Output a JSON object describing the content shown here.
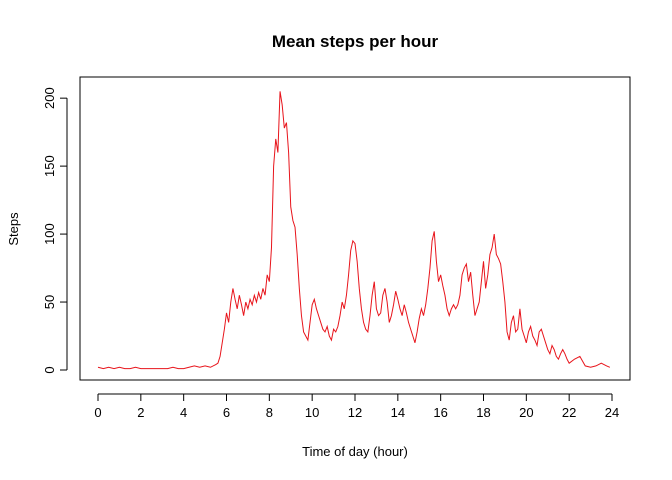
{
  "chart_data": {
    "type": "line",
    "title": "Mean steps per hour",
    "xlabel": "Time of day (hour)",
    "ylabel": "Steps",
    "xlim": [
      0,
      24
    ],
    "ylim": [
      0,
      206
    ],
    "xticks": [
      0,
      2,
      4,
      6,
      8,
      10,
      12,
      14,
      16,
      18,
      20,
      22,
      24
    ],
    "yticks": [
      0,
      50,
      100,
      150,
      200
    ],
    "grid": false,
    "line_color": "#e8141b",
    "series": [
      {
        "x": [
          0,
          0.25,
          0.5,
          0.75,
          1,
          1.25,
          1.5,
          1.75,
          2,
          2.25,
          2.5,
          2.75,
          3,
          3.25,
          3.5,
          3.75,
          4,
          4.25,
          4.5,
          4.75,
          5,
          5.25,
          5.5,
          5.6,
          5.7,
          5.8,
          5.9,
          6,
          6.1,
          6.2,
          6.3,
          6.4,
          6.5,
          6.6,
          6.7,
          6.8,
          6.9,
          7,
          7.1,
          7.2,
          7.3,
          7.4,
          7.5,
          7.6,
          7.7,
          7.8,
          7.9,
          8,
          8.1,
          8.2,
          8.3,
          8.4,
          8.5,
          8.6,
          8.7,
          8.8,
          8.9,
          9,
          9.1,
          9.2,
          9.3,
          9.4,
          9.5,
          9.6,
          9.7,
          9.8,
          9.9,
          10,
          10.1,
          10.2,
          10.3,
          10.4,
          10.5,
          10.6,
          10.7,
          10.8,
          10.9,
          11,
          11.1,
          11.2,
          11.3,
          11.4,
          11.5,
          11.6,
          11.7,
          11.8,
          11.9,
          12,
          12.1,
          12.2,
          12.3,
          12.4,
          12.5,
          12.6,
          12.7,
          12.8,
          12.9,
          13,
          13.1,
          13.2,
          13.3,
          13.4,
          13.5,
          13.6,
          13.7,
          13.8,
          13.9,
          14,
          14.1,
          14.2,
          14.3,
          14.4,
          14.5,
          14.6,
          14.7,
          14.8,
          14.9,
          15,
          15.1,
          15.2,
          15.3,
          15.4,
          15.5,
          15.6,
          15.7,
          15.8,
          15.9,
          16,
          16.1,
          16.2,
          16.3,
          16.4,
          16.5,
          16.6,
          16.7,
          16.8,
          16.9,
          17,
          17.1,
          17.2,
          17.3,
          17.4,
          17.5,
          17.6,
          17.7,
          17.8,
          17.9,
          18,
          18.1,
          18.2,
          18.3,
          18.4,
          18.5,
          18.6,
          18.7,
          18.8,
          18.9,
          19,
          19.1,
          19.2,
          19.3,
          19.4,
          19.5,
          19.6,
          19.7,
          19.8,
          19.9,
          20,
          20.1,
          20.2,
          20.3,
          20.4,
          20.5,
          20.6,
          20.7,
          20.8,
          20.9,
          21,
          21.1,
          21.2,
          21.3,
          21.4,
          21.5,
          21.6,
          21.7,
          21.8,
          21.9,
          22,
          22.25,
          22.5,
          22.75,
          23,
          23.25,
          23.5,
          23.75,
          23.9
        ],
        "y": [
          2,
          1,
          2,
          1,
          2,
          1,
          1,
          2,
          1,
          1,
          1,
          1,
          1,
          1,
          2,
          1,
          1,
          2,
          3,
          2,
          3,
          2,
          4,
          5,
          10,
          20,
          30,
          42,
          35,
          50,
          60,
          52,
          45,
          55,
          48,
          40,
          50,
          45,
          52,
          48,
          55,
          50,
          57,
          52,
          60,
          55,
          70,
          65,
          90,
          150,
          170,
          160,
          205,
          195,
          178,
          182,
          160,
          120,
          110,
          105,
          85,
          60,
          40,
          28,
          25,
          22,
          35,
          48,
          52,
          45,
          40,
          35,
          30,
          28,
          32,
          25,
          22,
          30,
          28,
          32,
          40,
          50,
          45,
          55,
          70,
          88,
          95,
          93,
          80,
          60,
          45,
          35,
          30,
          28,
          40,
          55,
          65,
          45,
          40,
          42,
          55,
          60,
          50,
          35,
          40,
          48,
          58,
          52,
          45,
          40,
          48,
          42,
          35,
          30,
          25,
          20,
          28,
          38,
          45,
          40,
          48,
          60,
          75,
          95,
          102,
          80,
          65,
          70,
          62,
          55,
          45,
          40,
          45,
          48,
          45,
          48,
          55,
          70,
          75,
          78,
          65,
          72,
          55,
          40,
          45,
          50,
          65,
          80,
          60,
          70,
          85,
          90,
          100,
          85,
          82,
          78,
          65,
          50,
          28,
          22,
          35,
          40,
          28,
          30,
          45,
          30,
          25,
          20,
          28,
          32,
          25,
          22,
          18,
          28,
          30,
          25,
          20,
          15,
          12,
          18,
          15,
          10,
          8,
          12,
          15,
          12,
          8,
          5,
          8,
          10,
          3,
          2,
          3,
          5,
          3,
          2
        ]
      }
    ]
  }
}
